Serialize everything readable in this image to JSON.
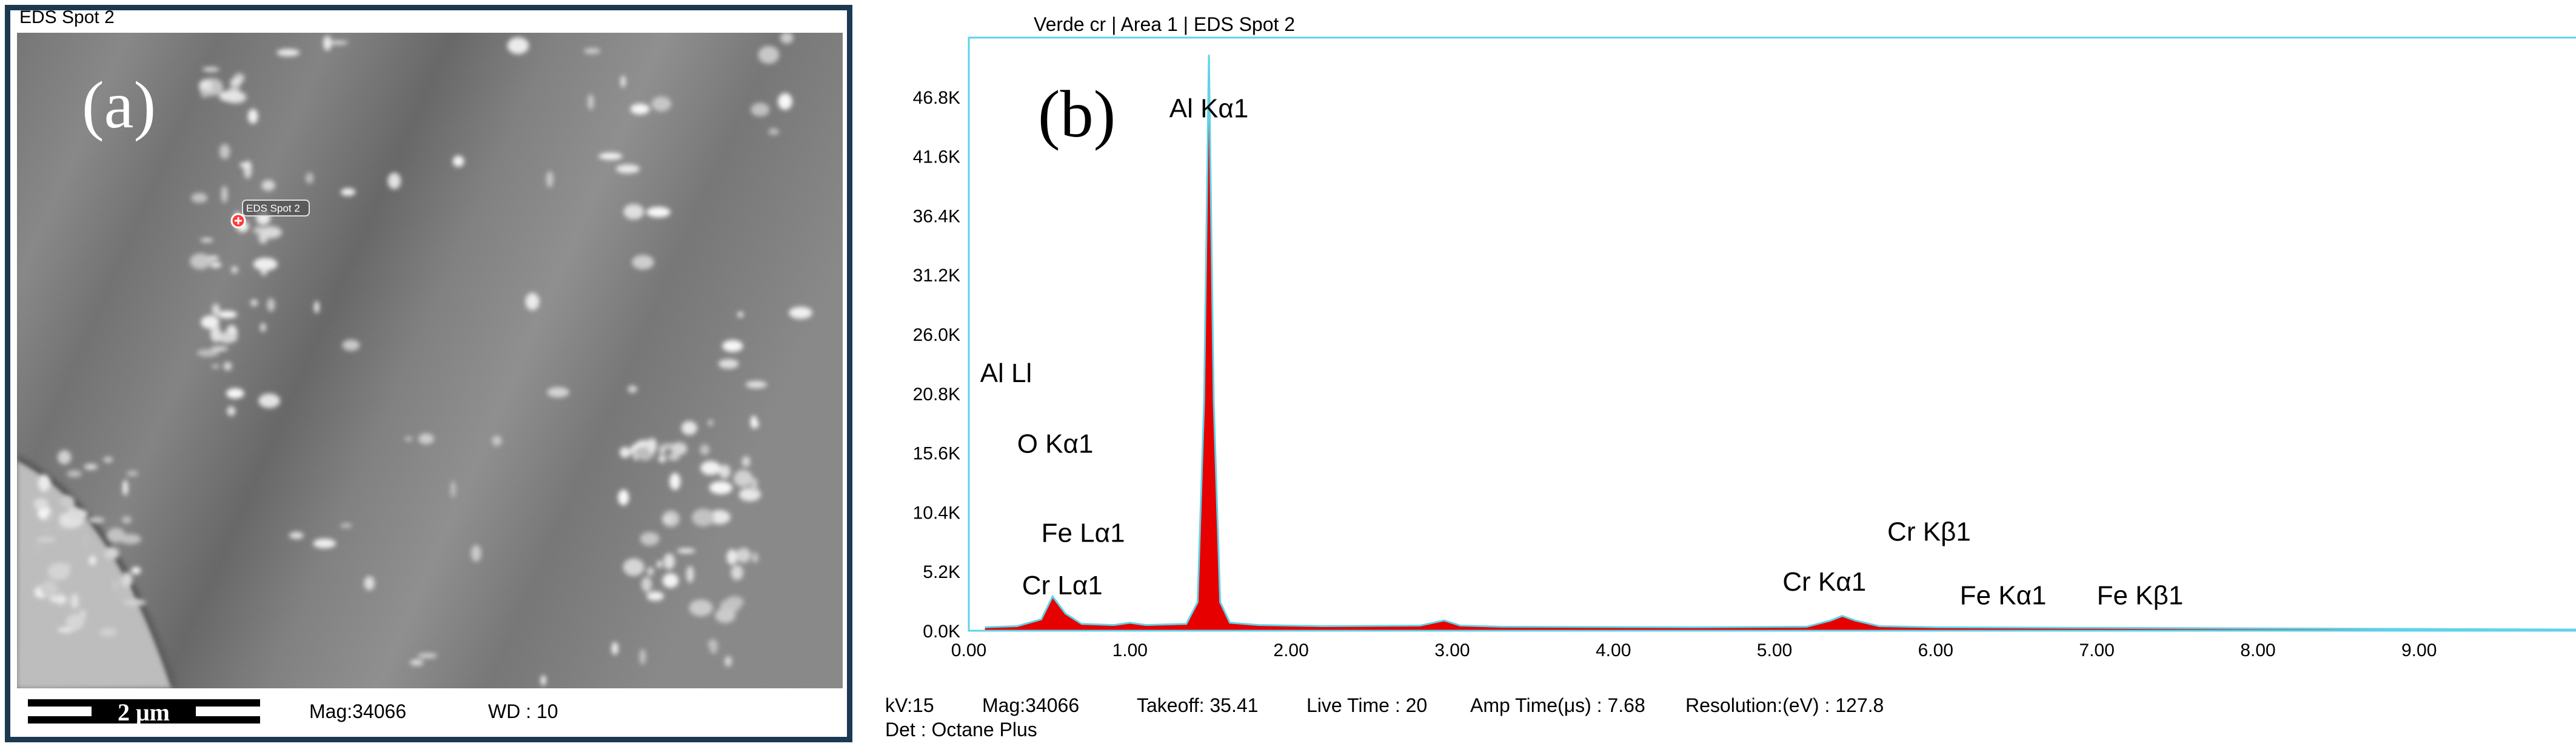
{
  "panel_a": {
    "title": "EDS Spot 2",
    "panel_label": "(a)",
    "spot_label": "EDS Spot 2",
    "scale_bar": "2 μm",
    "mag": "Mag:34066",
    "wd": "WD : 10"
  },
  "panel_b": {
    "title": "Verde cr | Area 1 | EDS Spot 2",
    "panel_label": "(b)",
    "footer": {
      "kv": "kV:15",
      "mag": "Mag:34066",
      "takeoff": "Takeoff: 35.41",
      "live_time": "Live Time : 20",
      "amp_time": "Amp Time(μs) : 7.68",
      "resolution": "Resolution:(eV) : 127.8",
      "det": "Det : Octane Plus"
    }
  },
  "chart_data": {
    "type": "line",
    "title": "Verde cr | Area 1 | EDS Spot 2",
    "xlabel": "",
    "ylabel": "",
    "xlim": [
      0,
      10
    ],
    "ylim": [
      0,
      52000
    ],
    "x_ticks": [
      "0.00",
      "1.00",
      "2.00",
      "3.00",
      "4.00",
      "5.00",
      "6.00",
      "7.00",
      "8.00",
      "9.00"
    ],
    "y_ticks": [
      "0.0K",
      "5.2K",
      "10.4K",
      "15.6K",
      "20.8K",
      "26.0K",
      "31.2K",
      "36.4K",
      "41.6K",
      "46.8K"
    ],
    "series": [
      {
        "x": [
          0.1,
          0.3,
          0.45,
          0.52,
          0.6,
          0.7,
          0.9,
          1.0,
          1.1,
          1.35,
          1.42,
          1.46,
          1.49,
          1.52,
          1.56,
          1.62,
          1.8,
          2.2,
          2.8,
          2.95,
          3.05,
          3.3,
          4.5,
          5.2,
          5.35,
          5.42,
          5.5,
          5.65,
          6.0,
          7.0,
          8.0,
          9.0,
          10.0
        ],
        "y": [
          300,
          400,
          1000,
          3000,
          1500,
          600,
          500,
          700,
          500,
          600,
          2500,
          20000,
          50500,
          20000,
          2500,
          700,
          500,
          400,
          450,
          900,
          450,
          350,
          300,
          350,
          900,
          1300,
          900,
          400,
          300,
          250,
          200,
          150,
          100
        ]
      }
    ],
    "annotations": [
      {
        "label": "Al Kα1",
        "x": 1.49,
        "y": 45000
      },
      {
        "label": "Al Ll",
        "x": 0.07,
        "y": 21800
      },
      {
        "label": "O  Kα1",
        "x": 0.3,
        "y": 15600
      },
      {
        "label": "Fe Lα1",
        "x": 0.45,
        "y": 7800
      },
      {
        "label": "Cr Lα1",
        "x": 0.33,
        "y": 3200
      },
      {
        "label": "Cr Kα1",
        "x": 5.05,
        "y": 3500
      },
      {
        "label": "Cr Kβ1",
        "x": 5.7,
        "y": 7900
      },
      {
        "label": "Fe Kα1",
        "x": 6.15,
        "y": 2300
      },
      {
        "label": "Fe Kβ1",
        "x": 7.0,
        "y": 2300
      }
    ],
    "colors": {
      "fill": "#e60000",
      "line": "#5fd3e8",
      "frame": "#5fd3e8"
    }
  }
}
